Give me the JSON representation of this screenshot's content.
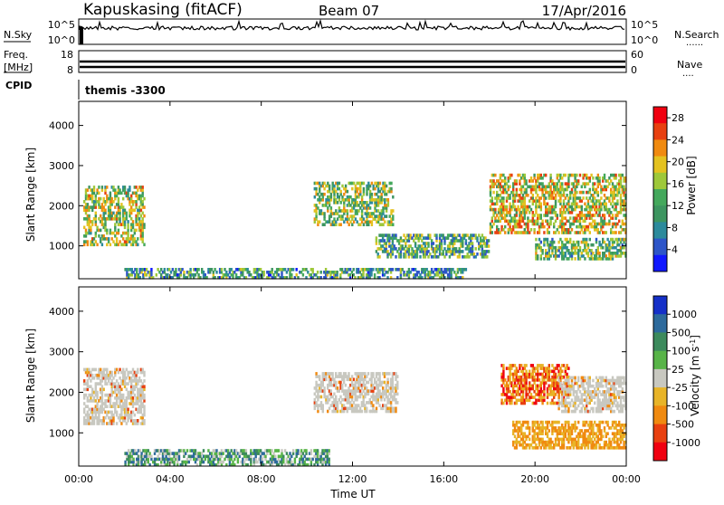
{
  "header": {
    "station": "Kapuskasing (fitACF)",
    "beam": "Beam 07",
    "date": "17/Apr/2016"
  },
  "top_panels": {
    "nsky_label": "N.Sky",
    "nsearch_label": "N.Search",
    "nsky_ticks": [
      "10^5",
      "10^0"
    ],
    "nsearch_ticks": [
      "10^5",
      "10^0"
    ],
    "freq_label_line1": "Freq.",
    "freq_label_line2": "[MHz]",
    "freq_ticks": [
      "18",
      "8"
    ],
    "nave_label": "Nave",
    "nave_ticks": [
      "60",
      "0"
    ],
    "cpid_label": "CPID",
    "cpid_value": "themis -3300",
    "dotted_marker": "......",
    "nave_marker": "...."
  },
  "chart_data": [
    {
      "type": "heatmap",
      "title": "",
      "ylabel": "Slant Range [km]",
      "xlabel": "",
      "xlim_hours": [
        0,
        24
      ],
      "ylim_km": [
        180,
        4600
      ],
      "y_ticks": [
        "4000",
        "3000",
        "2000",
        "1000"
      ],
      "y_tick_values": [
        4000,
        3000,
        2000,
        1000
      ],
      "colorbar": {
        "label": "Power [dB]",
        "ticks": [
          "28",
          "24",
          "20",
          "16",
          "12",
          "8",
          "4"
        ],
        "tick_values": [
          28,
          24,
          20,
          16,
          12,
          8,
          4
        ],
        "range": [
          0,
          30
        ],
        "colors": [
          "#1018ff",
          "#2d55c8",
          "#2c8a9c",
          "#3d9560",
          "#44a85c",
          "#9ec83a",
          "#e4c220",
          "#f08a10",
          "#e84010",
          "#f00010"
        ]
      },
      "regions": [
        {
          "t0": 0.2,
          "t1": 2.9,
          "r0": 1000,
          "r1": 2500,
          "level": 0.55
        },
        {
          "t0": 10.3,
          "t1": 13.8,
          "r0": 1500,
          "r1": 2600,
          "level": 0.5
        },
        {
          "t0": 13.0,
          "t1": 18.0,
          "r0": 700,
          "r1": 1300,
          "level": 0.4
        },
        {
          "t0": 18.0,
          "t1": 24.0,
          "r0": 1300,
          "r1": 2800,
          "level": 0.6
        },
        {
          "t0": 20.0,
          "t1": 24.0,
          "r0": 650,
          "r1": 1200,
          "level": 0.45
        },
        {
          "t0": 2.0,
          "t1": 17.0,
          "r0": 180,
          "r1": 450,
          "level": 0.35
        }
      ]
    },
    {
      "type": "heatmap",
      "title": "",
      "ylabel": "Slant Range [km]",
      "xlabel": "Time UT",
      "xlim_hours": [
        0,
        24
      ],
      "ylim_km": [
        180,
        4600
      ],
      "x_ticks": [
        "00:00",
        "04:00",
        "08:00",
        "12:00",
        "16:00",
        "20:00",
        "00:00"
      ],
      "x_tick_values": [
        0,
        4,
        8,
        12,
        16,
        20,
        24
      ],
      "y_ticks": [
        "4000",
        "3000",
        "2000",
        "1000"
      ],
      "y_tick_values": [
        4000,
        3000,
        2000,
        1000
      ],
      "colorbar": {
        "label": "Velocity [m s^-1]",
        "ticks": [
          "1000",
          "500",
          "100",
          "25",
          "-25",
          "-100",
          "-500",
          "-1000"
        ],
        "tick_values": [
          1000,
          500,
          100,
          25,
          -25,
          -100,
          -500,
          -1000
        ],
        "colors": [
          "#1530c8",
          "#2d6a9c",
          "#3c8a5c",
          "#58b448",
          "#c8c8c0",
          "#e8b428",
          "#f08a10",
          "#e84010",
          "#f00010"
        ]
      },
      "regions": [
        {
          "t0": 0.2,
          "t1": 2.9,
          "r0": 1200,
          "r1": 2600,
          "kind": "ground"
        },
        {
          "t0": 10.3,
          "t1": 14.0,
          "r0": 1500,
          "r1": 2500,
          "kind": "ground"
        },
        {
          "t0": 18.5,
          "t1": 21.5,
          "r0": 1700,
          "r1": 2700,
          "kind": "neg"
        },
        {
          "t0": 21.0,
          "t1": 24.0,
          "r0": 1500,
          "r1": 2400,
          "kind": "ground"
        },
        {
          "t0": 19.0,
          "t1": 24.0,
          "r0": 600,
          "r1": 1300,
          "kind": "negl"
        },
        {
          "t0": 2.0,
          "t1": 11.0,
          "r0": 180,
          "r1": 600,
          "kind": "pos"
        }
      ]
    }
  ]
}
